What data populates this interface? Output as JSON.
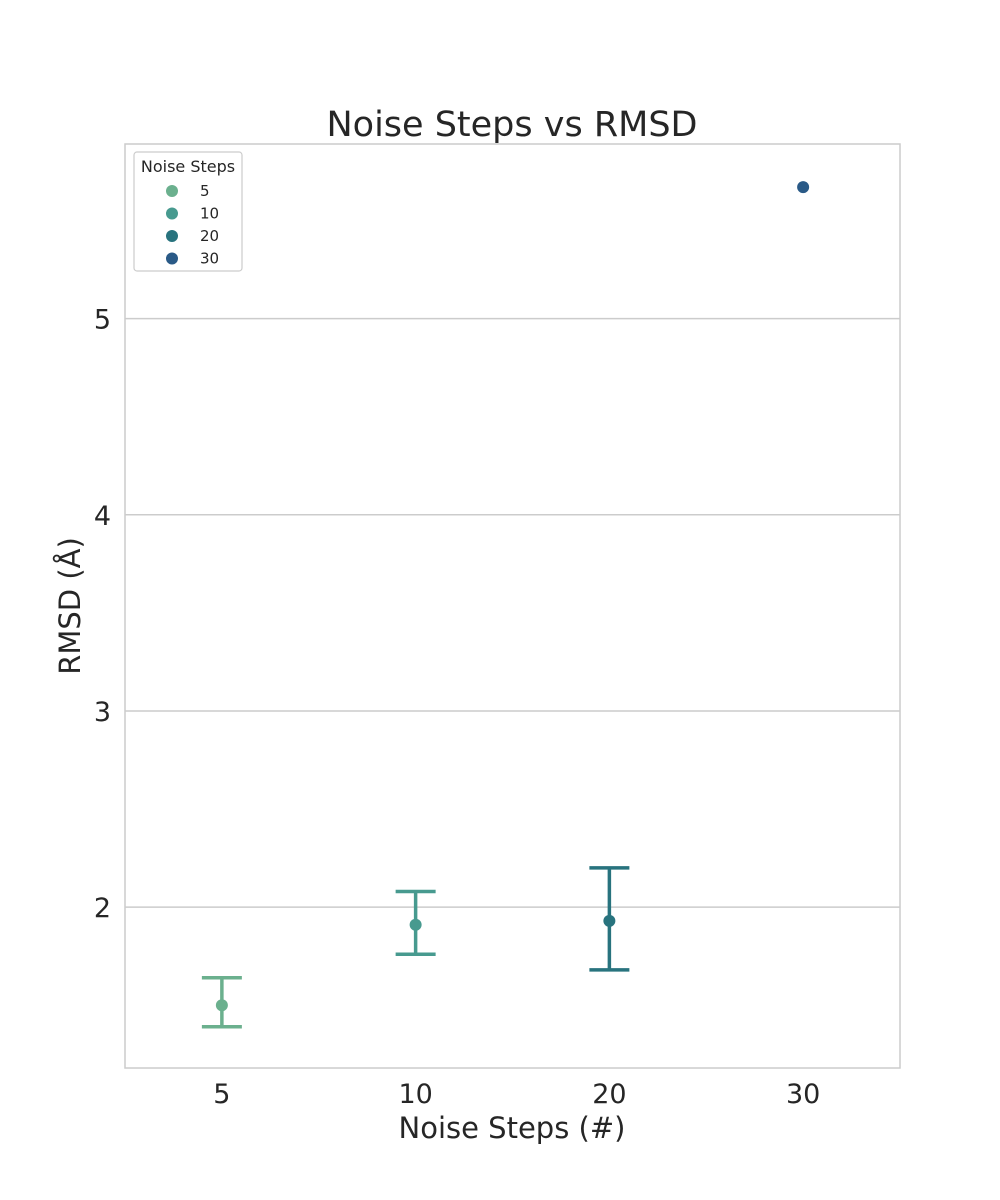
{
  "chart_data": {
    "type": "scatter",
    "title": "Noise Steps vs RMSD",
    "xlabel": "Noise Steps (#)",
    "ylabel": "RMSD (Å)",
    "categories": [
      "5",
      "10",
      "20",
      "30"
    ],
    "ylim": [
      1.18,
      5.89
    ],
    "yticks": [
      2,
      3,
      4,
      5
    ],
    "grid": "horizontal",
    "legend": {
      "title": "Noise Steps",
      "position": "top-left"
    },
    "series": [
      {
        "name": "5",
        "category": "5",
        "mean": 1.5,
        "ci_low": 1.39,
        "ci_high": 1.64,
        "color": "#6bb08e"
      },
      {
        "name": "10",
        "category": "10",
        "mean": 1.91,
        "ci_low": 1.76,
        "ci_high": 2.08,
        "color": "#479a8f"
      },
      {
        "name": "20",
        "category": "20",
        "mean": 1.93,
        "ci_low": 1.68,
        "ci_high": 2.2,
        "color": "#28737e"
      },
      {
        "name": "30",
        "category": "30",
        "mean": 5.67,
        "ci_low": null,
        "ci_high": null,
        "color": "#2a5a87"
      }
    ]
  }
}
